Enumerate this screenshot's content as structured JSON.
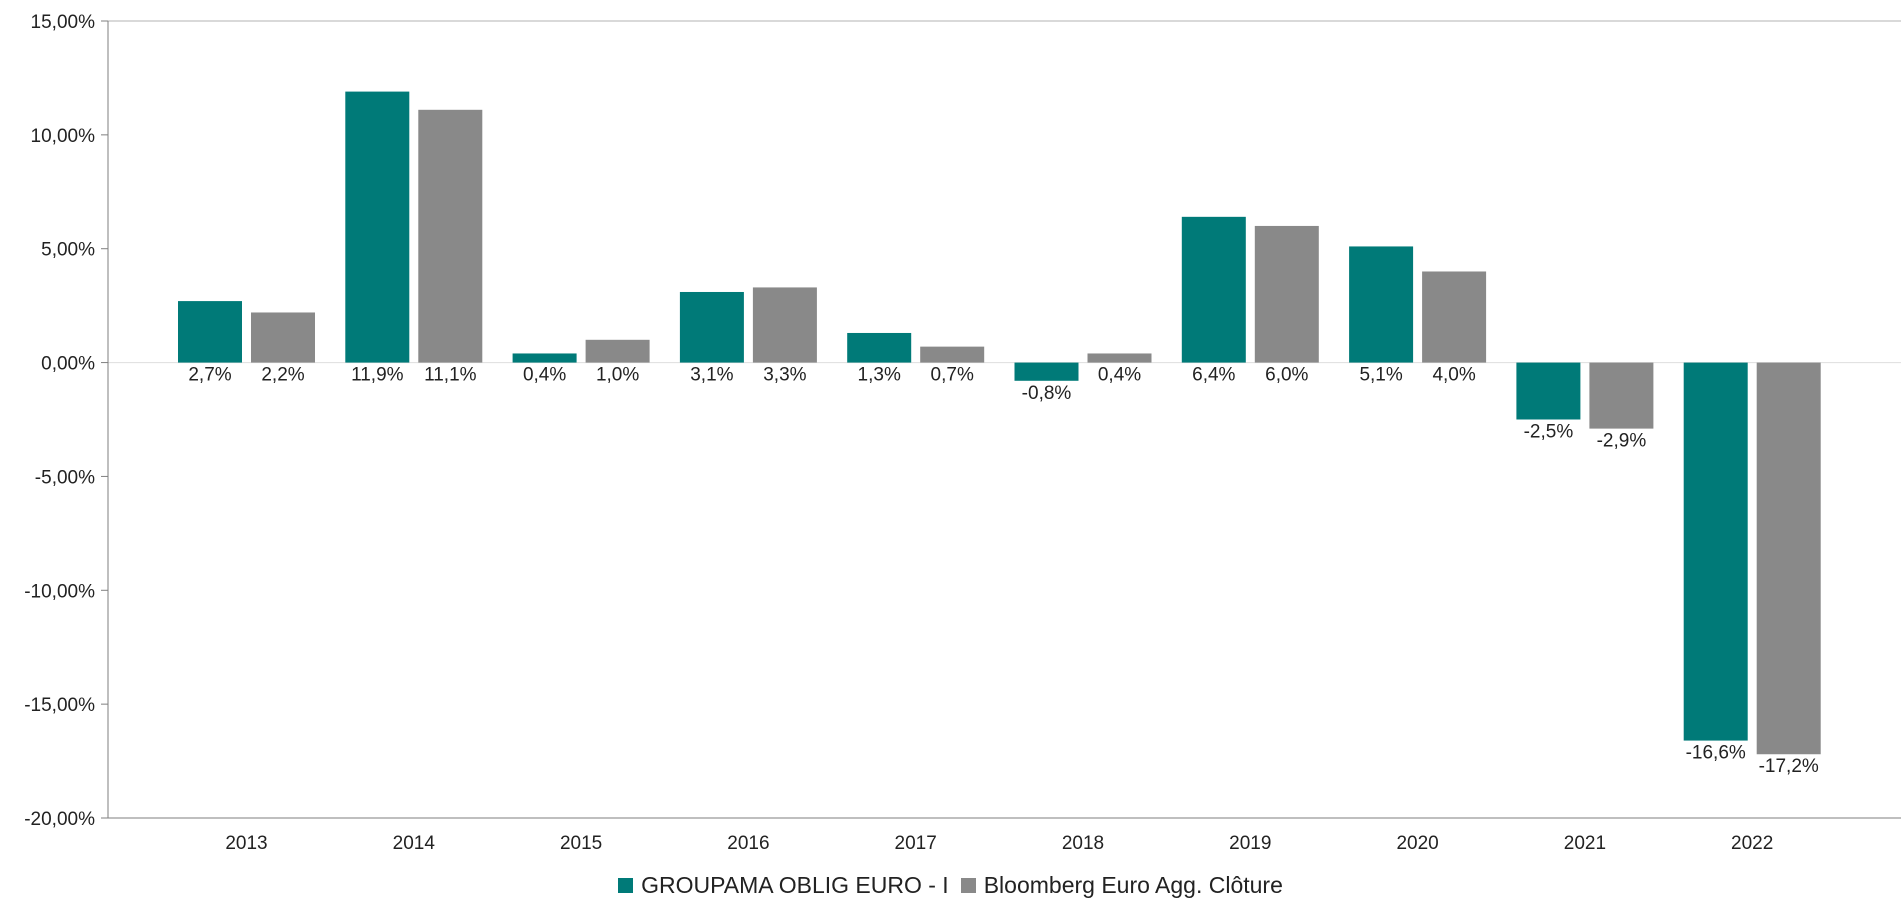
{
  "chart_data": {
    "type": "bar",
    "categories": [
      "2013",
      "2014",
      "2015",
      "2016",
      "2017",
      "2018",
      "2019",
      "2020",
      "2021",
      "2022"
    ],
    "series": [
      {
        "name": "GROUPAMA OBLIG EURO - I",
        "color": "#007a78",
        "values": [
          2.7,
          11.9,
          0.4,
          3.1,
          1.3,
          -0.8,
          6.4,
          5.1,
          -2.5,
          -16.6
        ],
        "labels": [
          "2,7%",
          "11,9%",
          "0,4%",
          "3,1%",
          "1,3%",
          "-0,8%",
          "6,4%",
          "5,1%",
          "-2,5%",
          "-16,6%"
        ]
      },
      {
        "name": "Bloomberg Euro Agg. Clôture",
        "color": "#898989",
        "values": [
          2.2,
          11.1,
          1.0,
          3.3,
          0.7,
          0.4,
          6.0,
          4.0,
          -2.9,
          -17.2
        ],
        "labels": [
          "2,2%",
          "11,1%",
          "1,0%",
          "3,3%",
          "0,7%",
          "0,4%",
          "6,0%",
          "4,0%",
          "-2,9%",
          "-17,2%"
        ]
      }
    ],
    "ylim": [
      -20,
      15
    ],
    "yticks": [
      15,
      10,
      5,
      0,
      -5,
      -10,
      -15,
      -20
    ],
    "ytick_labels": [
      "15,00%",
      "10,00%",
      "5,00%",
      "0,00%",
      "-5,00%",
      "-10,00%",
      "-15,00%",
      "-20,00%"
    ],
    "title": "",
    "xlabel": "",
    "ylabel": "",
    "grid": false,
    "legend_position": "bottom"
  },
  "legend": {
    "items": [
      "GROUPAMA OBLIG EURO - I",
      "Bloomberg Euro Agg. Clôture"
    ]
  }
}
